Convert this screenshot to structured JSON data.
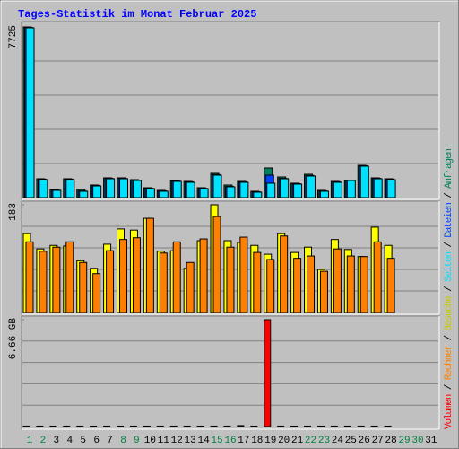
{
  "chart_data": {
    "type": "bar",
    "title": "Tages-Statistik im Monat Februar 2025",
    "categories": [
      "1",
      "2",
      "3",
      "4",
      "5",
      "6",
      "7",
      "8",
      "9",
      "10",
      "11",
      "12",
      "13",
      "14",
      "15",
      "16",
      "17",
      "18",
      "19",
      "20",
      "21",
      "22",
      "23",
      "24",
      "25",
      "26",
      "27",
      "28",
      "29",
      "30",
      "31"
    ],
    "category_colors": [
      "#008040",
      "#008040",
      "#000000",
      "#000000",
      "#000000",
      "#000000",
      "#000000",
      "#008040",
      "#008040",
      "#000000",
      "#000000",
      "#000000",
      "#000000",
      "#000000",
      "#008040",
      "#008040",
      "#000000",
      "#000000",
      "#000000",
      "#000000",
      "#000000",
      "#008040",
      "#008040",
      "#000000",
      "#000000",
      "#000000",
      "#000000",
      "#000000",
      "#008040",
      "#008040",
      "#000000"
    ],
    "legend_separator": " / ",
    "panels": [
      {
        "ylim": [
          0,
          7725
        ],
        "yticks": [
          7725
        ],
        "series": [
          {
            "name": "Anfragen",
            "color": "#00805c",
            "values": [
              7725,
              854,
              366,
              854,
              366,
              569,
              895,
              895,
              813,
              447,
              325,
              773,
              732,
              447,
              1098,
              569,
              732,
              285,
              1342,
              935,
              651,
              1057,
              325,
              732,
              773,
              1464,
              895,
              854,
              null,
              null,
              null
            ]
          },
          {
            "name": "Dateien",
            "color": "#0040ff",
            "values": [
              7700,
              830,
              340,
              830,
              300,
              545,
              870,
              870,
              790,
              420,
              300,
              750,
              710,
              420,
              1040,
              505,
              710,
              260,
              1016,
              870,
              630,
              1000,
              300,
              710,
              773,
              1440,
              870,
              830,
              null,
              null,
              null
            ]
          },
          {
            "name": "Seiten",
            "color": "#00e0ff",
            "values": [
              7685,
              813,
              325,
              813,
              285,
              529,
              854,
              854,
              773,
              407,
              285,
              732,
              691,
              407,
              1016,
              488,
              691,
              244,
              651,
              854,
              610,
              976,
              285,
              691,
              773,
              1423,
              854,
              813,
              null,
              null,
              null
            ]
          }
        ]
      },
      {
        "ylim": [
          0,
          183
        ],
        "yticks": [
          183
        ],
        "series": [
          {
            "name": "Besuche",
            "color": "#ffff00",
            "text_color": "#c8c800",
            "values": [
              134,
              108,
              114,
              113,
              88,
              75,
              116,
              142,
              140,
              160,
              104,
              105,
              75,
              122,
              183,
              122,
              119,
              114,
              99,
              134,
              102,
              111,
              73,
              124,
              107,
              95,
              145,
              114,
              null,
              null,
              null
            ]
          },
          {
            "name": "Rechner",
            "color": "#ff8000",
            "values": [
              120,
              104,
              111,
              120,
              85,
              66,
              105,
              124,
              127,
              160,
              101,
              120,
              85,
              125,
              163,
              111,
              128,
              102,
              90,
              130,
              92,
              96,
              70,
              108,
              96,
              95,
              120,
              92,
              null,
              null,
              null
            ]
          }
        ]
      },
      {
        "ylim": [
          0,
          6.66
        ],
        "yticks": [
          {
            "value": 6.66,
            "label": "6.66 GB"
          }
        ],
        "series": [
          {
            "name": "Volumen",
            "color": "#ff0000",
            "values": [
              0.03,
              0.03,
              0.03,
              0.03,
              0.03,
              0.03,
              0.03,
              0.03,
              0.03,
              0.03,
              0.03,
              0.03,
              0.03,
              0.03,
              0.03,
              0.03,
              0.06,
              0.03,
              6.66,
              0.03,
              0.03,
              0.03,
              0.03,
              0.03,
              0.03,
              0.03,
              0.03,
              0.03,
              null,
              null,
              null
            ]
          }
        ]
      }
    ]
  }
}
